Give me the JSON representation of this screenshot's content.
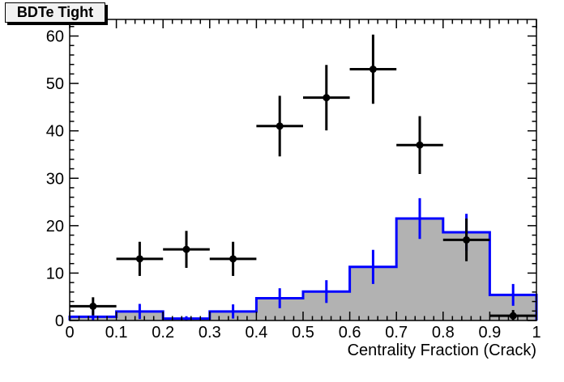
{
  "chart_data": {
    "type": "bar",
    "subtype": "root-histogram-with-data-points",
    "title": "BDTe Tight",
    "xlabel": "Centrality Fraction (Crack)",
    "ylabel": "",
    "xlim": [
      0,
      1
    ],
    "ylim": [
      0,
      63.5
    ],
    "grid": false,
    "legend": "none",
    "x_ticks": {
      "major_values": [
        0,
        0.1,
        0.2,
        0.3,
        0.4,
        0.5,
        0.6,
        0.7,
        0.8,
        0.9,
        1
      ],
      "major_labels": [
        "0",
        "0.1",
        "0.2",
        "0.3",
        "0.4",
        "0.5",
        "0.6",
        "0.7",
        "0.8",
        "0.9",
        "1"
      ],
      "minor_step": 0.02
    },
    "y_ticks": {
      "major_values": [
        0,
        10,
        20,
        30,
        40,
        50,
        60
      ],
      "major_labels": [
        "0",
        "10",
        "20",
        "30",
        "40",
        "50",
        "60"
      ],
      "minor_step": 2
    },
    "bin_edges": [
      0,
      0.1,
      0.2,
      0.3,
      0.4,
      0.5,
      0.6,
      0.7,
      0.8,
      0.9,
      1.0
    ],
    "bin_centers": [
      0.05,
      0.15,
      0.25,
      0.35,
      0.45,
      0.55,
      0.65,
      0.75,
      0.85,
      0.95
    ],
    "series": [
      {
        "name": "mc-template-histogram",
        "style": "filled-steps-with-error-bars",
        "fill_color": "#b2b2b2",
        "line_color": "#0000ff",
        "values": [
          0.8,
          1.9,
          0.4,
          1.9,
          4.7,
          6.1,
          11.3,
          21.5,
          18.6,
          5.4
        ],
        "errors": [
          1.4,
          1.6,
          0.5,
          1.5,
          2.1,
          2.4,
          3.6,
          4.3,
          3.9,
          2.3
        ]
      },
      {
        "name": "data-points",
        "style": "markers-with-error-bars",
        "color": "#000000",
        "x": [
          0.05,
          0.15,
          0.25,
          0.35,
          0.45,
          0.55,
          0.65,
          0.75,
          0.85,
          0.95
        ],
        "y": [
          3,
          13,
          15,
          13,
          41,
          47,
          53,
          37,
          17,
          1
        ],
        "yerr": [
          1.9,
          3.6,
          3.9,
          3.6,
          6.4,
          6.9,
          7.3,
          6.1,
          4.5,
          1.2
        ],
        "xerr": 0.05
      }
    ]
  },
  "colors": {
    "background": "#ffffff",
    "frame": "#000000",
    "histogram_fill": "#b2b2b2",
    "histogram_line": "#0000ff",
    "data_marker": "#000000",
    "title_box_bg": "#f2f2f2"
  }
}
